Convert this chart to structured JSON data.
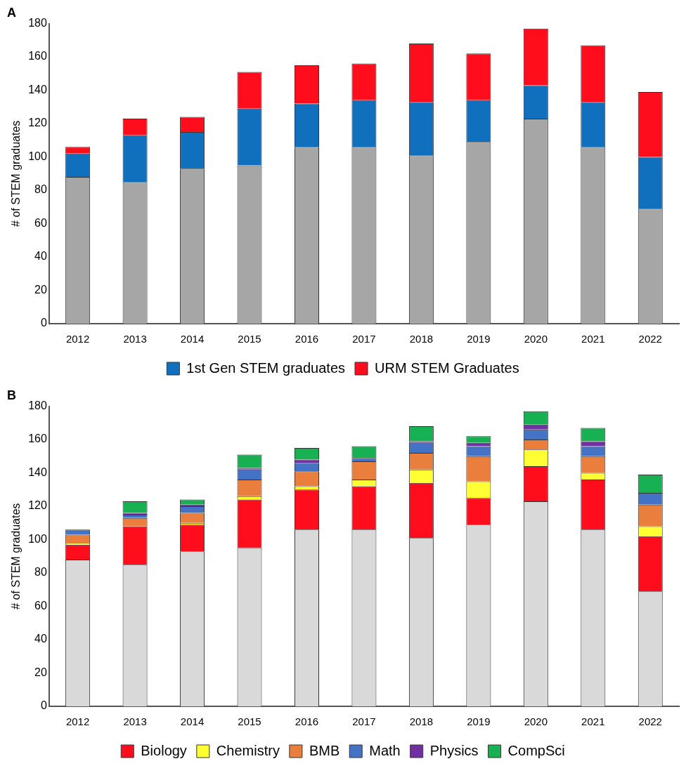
{
  "chart_data": [
    {
      "type": "bar",
      "title": "A",
      "ylabel": "# of STEM graduates",
      "categories": [
        "2012",
        "2013",
        "2014",
        "2015",
        "2016",
        "2017",
        "2018",
        "2019",
        "2020",
        "2021",
        "2022"
      ],
      "stacked": true,
      "ylim": [
        0,
        180
      ],
      "yticks": [
        0,
        20,
        40,
        60,
        80,
        100,
        120,
        140,
        160,
        180
      ],
      "grid": false,
      "legend": "bottom",
      "series": [
        {
          "color": "#a6a6a6",
          "values": [
            88,
            85,
            93,
            95,
            106,
            106,
            101,
            109,
            123,
            106,
            69
          ]
        },
        {
          "name": "1st Gen STEM graduates",
          "color": "#1170bd",
          "values": [
            14,
            28,
            22,
            34,
            26,
            28,
            32,
            25,
            20,
            27,
            31
          ]
        },
        {
          "name": "URM STEM Graduates",
          "color": "#ff0d1d",
          "values": [
            4,
            10,
            9,
            22,
            23,
            22,
            35,
            28,
            34,
            34,
            39
          ]
        }
      ]
    },
    {
      "type": "bar",
      "title": "B",
      "ylabel": "# of STEM graduates",
      "categories": [
        "2012",
        "2013",
        "2014",
        "2015",
        "2016",
        "2017",
        "2018",
        "2019",
        "2020",
        "2021",
        "2022"
      ],
      "stacked": true,
      "ylim": [
        0,
        180
      ],
      "yticks": [
        0,
        20,
        40,
        60,
        80,
        100,
        120,
        140,
        160,
        180
      ],
      "grid": false,
      "legend": "bottom",
      "series": [
        {
          "color": "#d9d9d9",
          "values": [
            88,
            85,
            93,
            95,
            106,
            106,
            101,
            109,
            123,
            106,
            69
          ]
        },
        {
          "name": "Biology",
          "color": "#ff0d1d",
          "values": [
            9,
            23,
            16,
            29,
            24,
            26,
            33,
            16,
            21,
            30,
            33
          ]
        },
        {
          "name": "Chemistry",
          "color": "#ffff33",
          "values": [
            1,
            0,
            1,
            2,
            2,
            4,
            8,
            10,
            10,
            4,
            6
          ]
        },
        {
          "name": "BMB",
          "color": "#ea7e3c",
          "values": [
            5,
            5,
            6,
            10,
            9,
            11,
            10,
            15,
            6,
            10,
            13
          ]
        },
        {
          "name": "Math",
          "color": "#4472c4",
          "values": [
            3,
            2,
            4,
            6,
            5,
            2,
            6,
            6,
            6,
            6,
            7
          ]
        },
        {
          "name": "Physics",
          "color": "#7030a0",
          "values": [
            0,
            1,
            1,
            1,
            2,
            0,
            1,
            2,
            3,
            3,
            0
          ]
        },
        {
          "name": "CompSci",
          "color": "#17b052",
          "values": [
            0,
            7,
            3,
            8,
            7,
            7,
            9,
            4,
            8,
            8,
            11
          ]
        }
      ]
    }
  ]
}
